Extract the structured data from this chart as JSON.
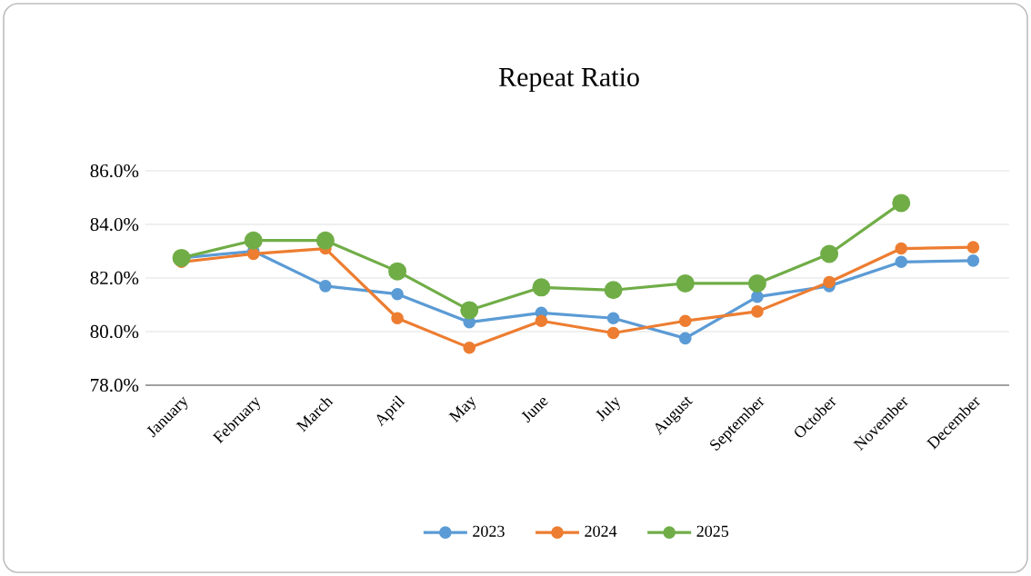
{
  "chart_data": {
    "type": "line",
    "title": "Repeat Ratio",
    "categories": [
      "January",
      "February",
      "March",
      "April",
      "May",
      "June",
      "July",
      "August",
      "September",
      "October",
      "November",
      "December"
    ],
    "series": [
      {
        "name": "2023",
        "color": "#5b9bd5",
        "values": [
          82.75,
          83.0,
          81.7,
          81.4,
          80.35,
          80.7,
          80.5,
          79.75,
          81.3,
          81.7,
          82.6,
          82.65
        ]
      },
      {
        "name": "2024",
        "color": "#ed7d31",
        "values": [
          82.6,
          82.9,
          83.1,
          80.5,
          79.4,
          80.4,
          79.95,
          80.4,
          80.75,
          81.85,
          83.1,
          83.15
        ]
      },
      {
        "name": "2025",
        "color": "#70ad47",
        "values": [
          82.75,
          83.4,
          83.4,
          82.25,
          80.8,
          81.65,
          81.55,
          81.8,
          81.8,
          82.9,
          84.8,
          null
        ]
      }
    ],
    "ylim": [
      78,
      86
    ],
    "yticks": [
      {
        "value": 78,
        "label": "78.0%"
      },
      {
        "value": 80,
        "label": "80.0%"
      },
      {
        "value": 82,
        "label": "82.0%"
      },
      {
        "value": 84,
        "label": "84.0%"
      },
      {
        "value": 86,
        "label": "86.0%"
      }
    ],
    "grid": "y",
    "legend": "bottom",
    "marker": "circle",
    "line_style": "solid"
  }
}
